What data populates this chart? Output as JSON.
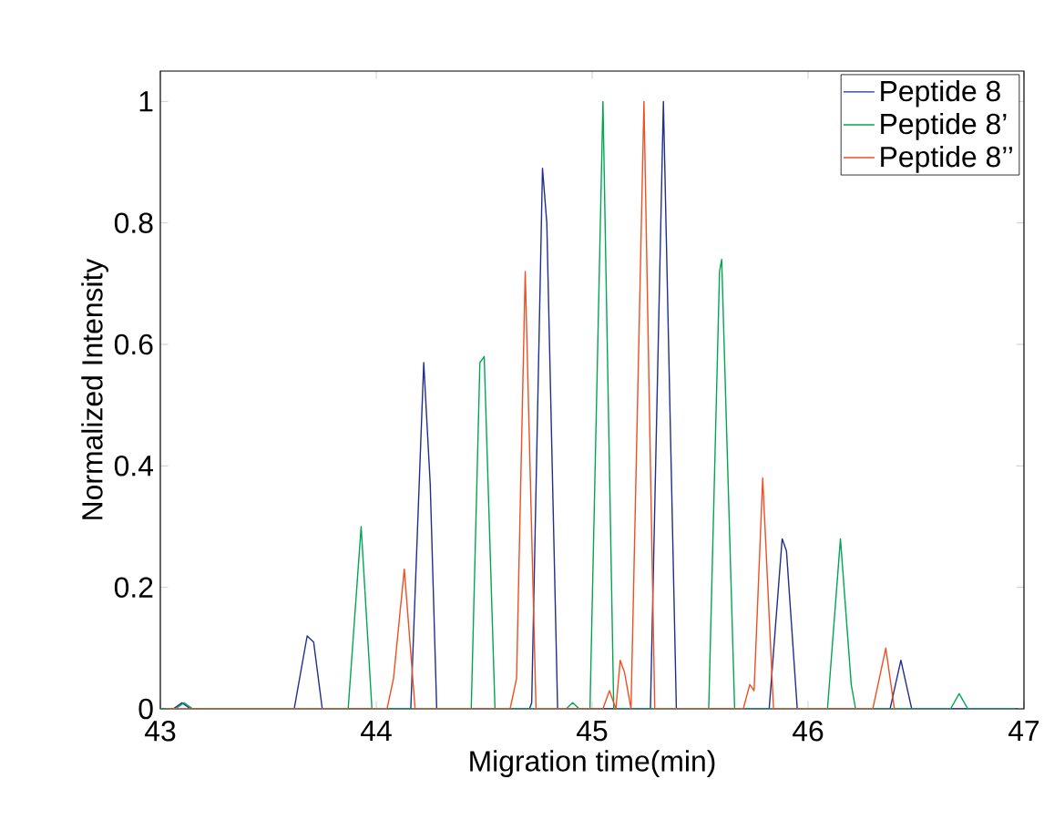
{
  "chart_data": {
    "type": "line",
    "xlabel": "Migration time(min)",
    "ylabel": "Normalized Intensity",
    "xlim": [
      43,
      47
    ],
    "ylim": [
      0,
      1.05
    ],
    "xticks": [
      43,
      44,
      45,
      46,
      47
    ],
    "yticks": [
      0,
      0.2,
      0.4,
      0.6,
      0.8,
      1
    ],
    "legend": "top right",
    "grid": false,
    "marker": "none",
    "line_style": "solid",
    "series": [
      {
        "name": "Peptide 8",
        "color": "#1f2e8f",
        "x": [
          43.0,
          43.06,
          43.1,
          43.14,
          43.62,
          43.68,
          43.71,
          43.75,
          44.16,
          44.22,
          44.25,
          44.28,
          44.71,
          44.72,
          44.77,
          44.79,
          44.84,
          45.27,
          45.33,
          45.39,
          45.82,
          45.88,
          45.9,
          45.95,
          46.38,
          46.43,
          46.48,
          46.97
        ],
        "values": [
          0,
          0,
          0.01,
          0,
          0,
          0.12,
          0.11,
          0,
          0,
          0.57,
          0.37,
          0,
          0,
          0.01,
          0.89,
          0.8,
          0,
          0,
          1.0,
          0,
          0,
          0.28,
          0.26,
          0,
          0,
          0.08,
          0,
          0
        ]
      },
      {
        "name": "Peptide 8’",
        "color": "#00a651",
        "x": [
          43.0,
          43.07,
          43.11,
          43.15,
          43.87,
          43.93,
          43.98,
          44.44,
          44.48,
          44.5,
          44.55,
          44.88,
          44.91,
          44.94,
          44.99,
          45.05,
          45.1,
          45.54,
          45.59,
          45.6,
          45.66,
          46.09,
          46.15,
          46.2,
          46.22,
          46.66,
          46.7,
          46.74,
          46.96
        ],
        "values": [
          0,
          0,
          0.01,
          0,
          0,
          0.3,
          0,
          0,
          0.57,
          0.58,
          0,
          0,
          0.01,
          0,
          0,
          1.0,
          0,
          0,
          0.72,
          0.74,
          0,
          0,
          0.28,
          0.04,
          0,
          0,
          0.025,
          0,
          0
        ]
      },
      {
        "name": "Peptide 8’’",
        "color": "#f04e23",
        "x": [
          43.02,
          44.05,
          44.08,
          44.13,
          44.18,
          44.62,
          44.65,
          44.69,
          44.74,
          45.05,
          45.08,
          45.11,
          45.13,
          45.15,
          45.18,
          45.24,
          45.29,
          45.7,
          45.73,
          45.75,
          45.79,
          45.84,
          46.3,
          46.36,
          46.4
        ],
        "values": [
          0,
          0,
          0.05,
          0.23,
          0,
          0,
          0.05,
          0.72,
          0,
          0,
          0.03,
          0,
          0.08,
          0.06,
          0,
          1.0,
          0,
          0,
          0.04,
          0.03,
          0.38,
          0,
          0,
          0.1,
          0
        ]
      }
    ]
  }
}
